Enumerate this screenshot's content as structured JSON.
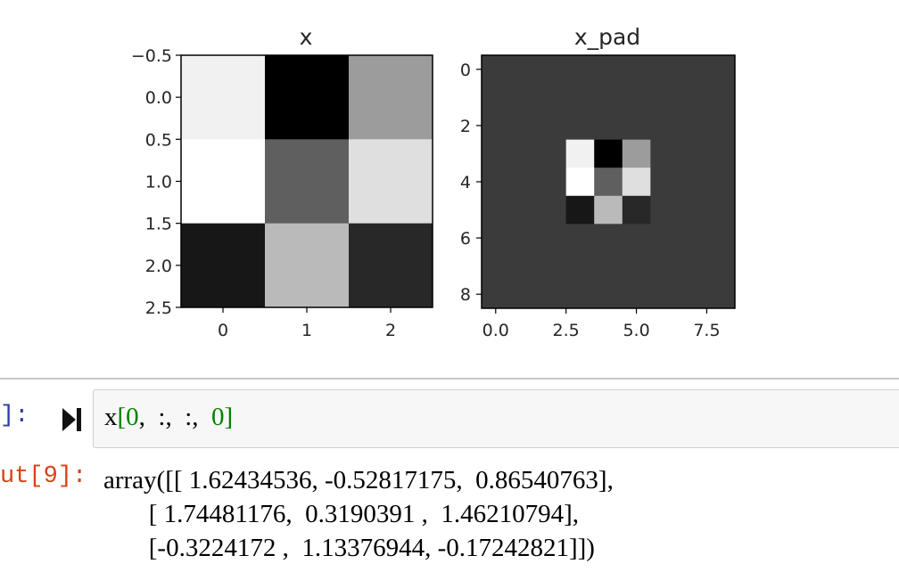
{
  "figure": {
    "left_plot": {
      "title": "x",
      "y_ticks": [
        "−0.5",
        "0.0",
        "0.5",
        "1.0",
        "1.5",
        "2.0",
        "2.5"
      ],
      "x_ticks": [
        "0",
        "1",
        "2"
      ],
      "matrix": [
        [
          1.62434536,
          -0.52817175,
          0.86540763
        ],
        [
          1.74481176,
          0.3190391,
          1.46210794
        ],
        [
          -0.3224172,
          1.13376944,
          -0.17242821
        ]
      ]
    },
    "right_plot": {
      "title": "x_pad",
      "y_ticks": [
        "0",
        "2",
        "4",
        "6",
        "8"
      ],
      "x_ticks": [
        "0.0",
        "2.5",
        "5.0",
        "7.5"
      ],
      "pad_value": 0,
      "inner_offset": 3,
      "size": 9
    },
    "colormap": "gray"
  },
  "input_cell": {
    "prompt": "]:",
    "code": {
      "var": "x",
      "open": "[",
      "arg0": "0",
      "sep1": ",  :,  :,  ",
      "arg3": "0",
      "close": "]"
    }
  },
  "output_cell": {
    "prompt": "ut[9]:",
    "text": "array([[ 1.62434536, -0.52817175,  0.86540763],\n       [ 1.74481176,  0.3190391 ,  1.46210794],\n       [-0.3224172 ,  1.13376944, -0.17242821]])"
  },
  "colors": {
    "in_prompt": "#303f9f",
    "out_prompt": "#d84315",
    "code_number": "#008000"
  }
}
